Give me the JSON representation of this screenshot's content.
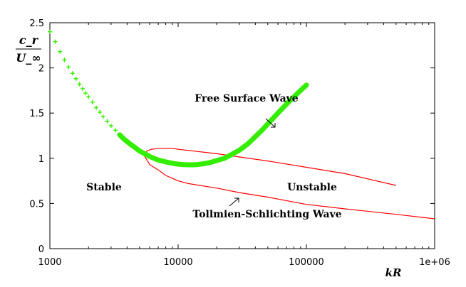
{
  "chart_data": {
    "type": "line",
    "xscale": "log",
    "xlim": [
      1000,
      1000000
    ],
    "ylim": [
      0,
      2.5
    ],
    "xticks": [
      1000,
      10000,
      100000,
      1000000
    ],
    "xtick_labels": [
      "1000",
      "10000",
      "100000",
      "1e+06"
    ],
    "yticks": [
      0,
      0.5,
      1,
      1.5,
      2,
      2.5
    ],
    "ytick_labels": [
      "0",
      "0.5",
      "1",
      "1.5",
      "2",
      "2.5"
    ],
    "xlabel": "kR",
    "ylabel": {
      "numerator": "c_r",
      "denominator": "U_∞"
    },
    "colors": {
      "free_surface": "#33ee00",
      "tollmien": "#ff0000",
      "axis": "#000000"
    },
    "series": [
      {
        "name": "Free Surface Wave",
        "style": "markers-plus-thick",
        "x": [
          1000,
          1100,
          1200,
          1300,
          1400,
          1500,
          1600,
          1700,
          1800,
          1900,
          2000,
          2150,
          2300,
          2450,
          2600,
          2800,
          3000,
          3250,
          3500,
          3800,
          4200,
          4600,
          5000,
          5500,
          6000,
          7000,
          8000,
          9000,
          10000,
          11000,
          12000,
          13000,
          14000,
          16000,
          18000,
          20000,
          23000,
          26000,
          30000,
          35000,
          40000,
          45000,
          50000,
          60000,
          70000,
          80000,
          90000,
          100000
        ],
        "y": [
          2.4,
          2.29,
          2.18,
          2.09,
          2.01,
          1.94,
          1.88,
          1.82,
          1.77,
          1.72,
          1.68,
          1.62,
          1.56,
          1.51,
          1.46,
          1.41,
          1.36,
          1.31,
          1.26,
          1.21,
          1.16,
          1.12,
          1.08,
          1.05,
          1.02,
          0.98,
          0.96,
          0.945,
          0.935,
          0.93,
          0.928,
          0.928,
          0.93,
          0.94,
          0.955,
          0.975,
          1.0,
          1.04,
          1.09,
          1.16,
          1.24,
          1.31,
          1.38,
          1.5,
          1.6,
          1.68,
          1.75,
          1.81
        ]
      },
      {
        "name": "Tollmien-Schlichting Wave",
        "style": "line",
        "upper": {
          "x": [
            5400,
            5700,
            6200,
            7000,
            8000,
            9000,
            10000,
            20000,
            50000,
            100000,
            200000,
            500000
          ],
          "y": [
            1.04,
            1.08,
            1.1,
            1.11,
            1.11,
            1.11,
            1.1,
            1.05,
            0.97,
            0.9,
            0.83,
            0.7
          ]
        },
        "lower": {
          "x": [
            5400,
            5600,
            6000,
            7000,
            8000,
            10000,
            12000,
            20000,
            30000,
            50000,
            100000,
            200000,
            500000,
            1000000
          ],
          "y": [
            1.04,
            1.0,
            0.93,
            0.87,
            0.81,
            0.75,
            0.72,
            0.67,
            0.62,
            0.57,
            0.49,
            0.44,
            0.38,
            0.33
          ]
        }
      }
    ],
    "annotations": [
      {
        "text": "Free Surface Wave",
        "arrow_to": [
          62000,
          1.35
        ]
      },
      {
        "text": "Stable"
      },
      {
        "text": "Unstable"
      },
      {
        "text": "Tollmien-Schlichting Wave",
        "arrow_to": [
          33000,
          0.6
        ]
      }
    ]
  }
}
